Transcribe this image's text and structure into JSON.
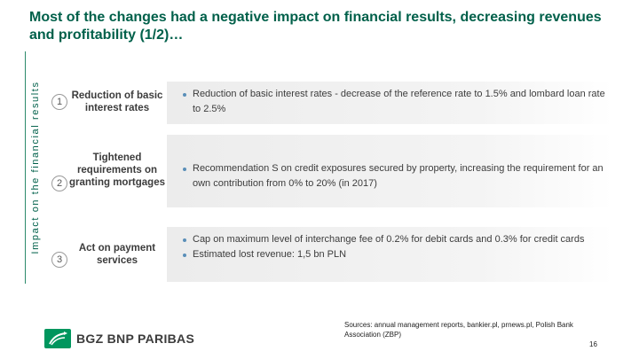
{
  "title": "Most of the changes had a negative impact on financial results, decreasing revenues and profitability (1/2)…",
  "sidebar_label": "Impact on the financial results",
  "rows": [
    {
      "number": "1",
      "label": "Reduction of basic interest rates",
      "bullets": [
        "Reduction of basic interest rates - decrease of the reference rate to 1.5% and lombard loan rate to 2.5%"
      ]
    },
    {
      "number": "2",
      "label": "Tightened requirements on granting mortgages",
      "bullets": [
        "Recommendation S on credit exposures secured by property, increasing the requirement for an own contribution from 0% to 20% (in 2017)"
      ]
    },
    {
      "number": "3",
      "label": "Act on payment services",
      "bullets": [
        "Cap on maximum level of interchange fee of 0.2% for debit cards and 0.3% for credit cards",
        "Estimated lost revenue: 1,5 bn PLN"
      ]
    }
  ],
  "footer": {
    "logo_text": "BGZ BNP PARIBAS",
    "sources": "Sources: annual management reports, bankier.pl, prnews.pl, Polish Bank Association (ZBP)",
    "page_number": "16"
  },
  "colors": {
    "title": "#00604a",
    "sidebar_line": "#2d8a6b",
    "logo_green": "#00965e",
    "bullet": "#5a8fb8"
  }
}
